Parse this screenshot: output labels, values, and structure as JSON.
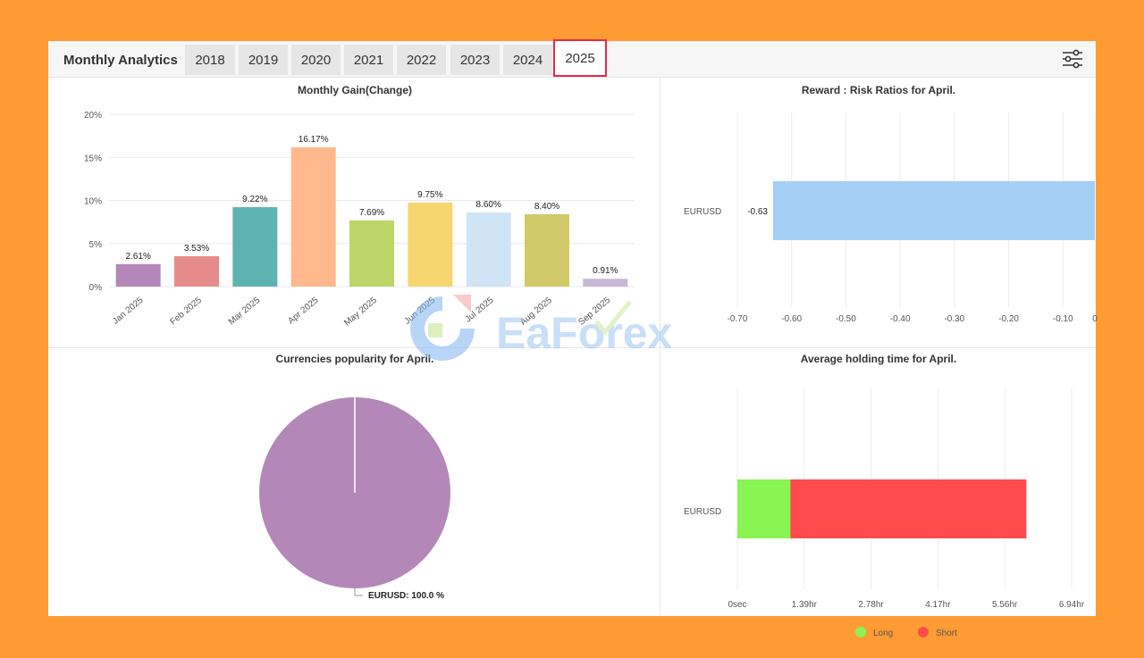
{
  "header": {
    "title": "Monthly Analytics",
    "tabs": [
      "2018",
      "2019",
      "2020",
      "2021",
      "2022",
      "2023",
      "2024",
      "2025"
    ],
    "active_tab": "2025"
  },
  "watermark": "EaForex",
  "chart_data": [
    {
      "type": "bar",
      "title": "Monthly Gain(Change)",
      "categories": [
        "Jan 2025",
        "Feb 2025",
        "Mar 2025",
        "Apr 2025",
        "May 2025",
        "Jun 2025",
        "Jul 2025",
        "Aug 2025",
        "Sep 2025"
      ],
      "values": [
        2.61,
        3.53,
        9.22,
        16.17,
        7.69,
        9.75,
        8.6,
        8.4,
        0.91
      ],
      "value_labels": [
        "2.61%",
        "3.53%",
        "9.22%",
        "16.17%",
        "7.69%",
        "9.75%",
        "8.60%",
        "8.40%",
        "0.91%"
      ],
      "colors": [
        "#B388B8",
        "#E58B8B",
        "#5DB3B0",
        "#FFB98D",
        "#BCD66A",
        "#F7D56F",
        "#CFE5F6",
        "#D2C968",
        "#C8B9D7"
      ],
      "yticks": [
        "0%",
        "5%",
        "10%",
        "15%",
        "20%"
      ],
      "ylim": [
        0,
        20
      ],
      "grid": true
    },
    {
      "type": "bar",
      "orientation": "horizontal",
      "title": "Reward : Risk Ratios for April.",
      "categories": [
        "EURUSD"
      ],
      "values": [
        -0.63
      ],
      "value_labels": [
        "-0.63"
      ],
      "color": "#A3CFF5",
      "xticks": [
        "-0.70",
        "-0.60",
        "-0.50",
        "-0.40",
        "-0.30",
        "-0.20",
        "-0.10",
        "0"
      ],
      "xlim": [
        -0.7,
        0
      ],
      "grid": true
    },
    {
      "type": "pie",
      "title": "Currencies popularity for April.",
      "labels": [
        "EURUSD"
      ],
      "values": [
        100.0
      ],
      "slice_labels": [
        "EURUSD: 100.0 %"
      ],
      "colors": [
        "#B388B8"
      ]
    },
    {
      "type": "bar",
      "orientation": "horizontal",
      "stacked": true,
      "title": "Average holding time for April.",
      "categories": [
        "EURUSD"
      ],
      "series": [
        {
          "name": "Long",
          "values": [
            1.1
          ],
          "color": "#88F553"
        },
        {
          "name": "Short",
          "values": [
            4.9
          ],
          "color": "#FF4B4B"
        }
      ],
      "xticks": [
        "0sec",
        "1.39hr",
        "2.78hr",
        "4.17hr",
        "5.56hr",
        "6.94hr"
      ],
      "xlim": [
        0,
        6.94
      ],
      "legend": "bottom",
      "grid": true
    }
  ]
}
